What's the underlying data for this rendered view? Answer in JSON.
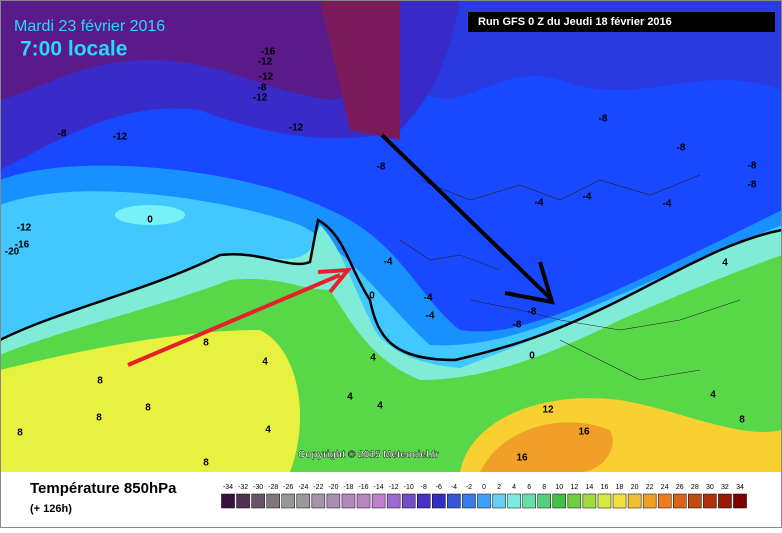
{
  "header": {
    "date": "Mardi 23 février 2016",
    "time": "7:00 locale",
    "run": "Run GFS 0 Z du Jeudi 18 février 2016"
  },
  "copyright": "Copyright © 2015 Meteociel.fr",
  "footer": {
    "title": "Température 850hPa",
    "lead": "(+ 126h)"
  },
  "legend": {
    "ticks": [
      -34,
      -32,
      -30,
      -28,
      -26,
      -24,
      -22,
      -20,
      -18,
      -16,
      -14,
      -12,
      -10,
      -8,
      -6,
      -4,
      -2,
      0,
      2,
      4,
      6,
      8,
      10,
      12,
      14,
      16,
      18,
      20,
      22,
      24,
      26,
      28,
      30,
      32,
      34
    ]
  },
  "map": {
    "labels": [
      -16,
      -12,
      -12,
      -8,
      -12,
      -8,
      -12,
      -12,
      -8,
      -8,
      -8,
      -8,
      -8,
      -12,
      -16,
      -20,
      0,
      -4,
      -4,
      -4,
      -4,
      -4,
      -4,
      0,
      -8,
      -8,
      0,
      8,
      8,
      8,
      8,
      8,
      8,
      4,
      4,
      4,
      4,
      12,
      16,
      16,
      4,
      4,
      8,
      4
    ]
  }
}
